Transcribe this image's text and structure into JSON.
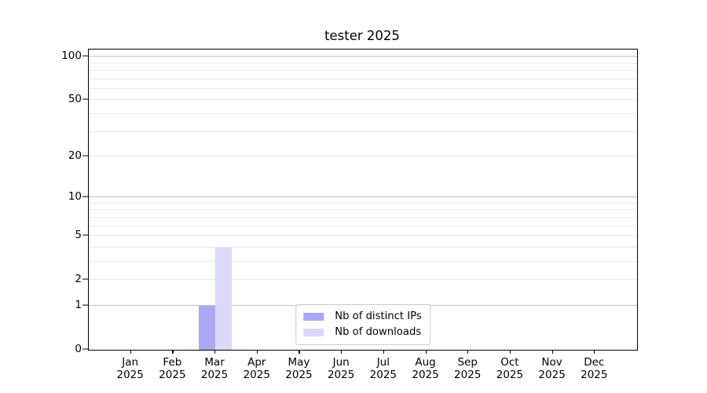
{
  "chart_data": {
    "type": "bar",
    "title": "tester 2025",
    "xlabel": "",
    "ylabel": "",
    "x_tick_year": "2025",
    "categories": [
      "Jan",
      "Feb",
      "Mar",
      "Apr",
      "May",
      "Jun",
      "Jul",
      "Aug",
      "Sep",
      "Oct",
      "Nov",
      "Dec"
    ],
    "series": [
      {
        "name": "Nb of distinct IPs",
        "color": "#a9a9f6",
        "values": [
          0,
          0,
          1,
          0,
          0,
          0,
          0,
          0,
          0,
          0,
          0,
          0
        ]
      },
      {
        "name": "Nb of downloads",
        "color": "#d9d9f9",
        "values": [
          0,
          0,
          4,
          0,
          0,
          0,
          0,
          0,
          0,
          0,
          0,
          0
        ]
      }
    ],
    "y_scale": "log1p",
    "ylim": [
      0,
      112
    ],
    "y_ticks": [
      0,
      1,
      2,
      5,
      10,
      20,
      50,
      100
    ],
    "grid": {
      "major": [
        1,
        10,
        100
      ],
      "minor": [
        2,
        3,
        4,
        5,
        6,
        7,
        8,
        9,
        20,
        30,
        40,
        50,
        60,
        70,
        80,
        90
      ]
    },
    "legend_position": "lower center",
    "colors": {
      "major_grid": "#c3c3c3",
      "minor_grid": "#ebebeb",
      "axis": "#000000",
      "background": "#ffffff"
    }
  }
}
